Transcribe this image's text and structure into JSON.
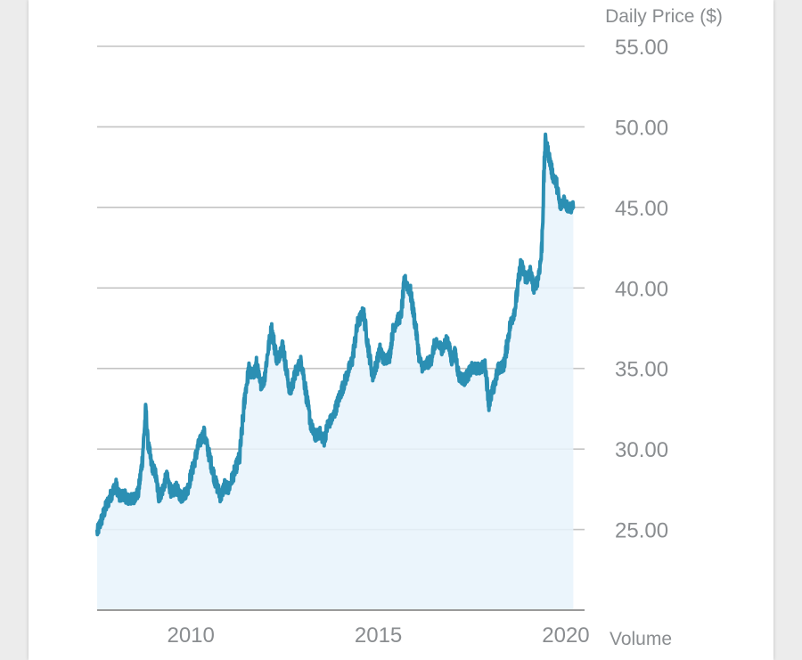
{
  "chart_data": {
    "type": "area",
    "title": "",
    "ylabel": "Daily Price ($)",
    "xlabel_right": "Volume",
    "ylim": [
      20,
      55
    ],
    "xlim": [
      2007.5,
      2020.5
    ],
    "y_ticks": [
      55,
      50,
      45,
      40,
      35,
      30,
      25
    ],
    "y_tick_labels": [
      "55.00",
      "50.00",
      "45.00",
      "40.00",
      "35.00",
      "30.00",
      "25.00"
    ],
    "x_ticks": [
      2010,
      2015,
      2020
    ],
    "x_tick_labels": [
      "2010",
      "2015",
      "2020"
    ],
    "grid": true,
    "colors": {
      "line": "#2b8fb3",
      "fill": "#e8f3fb",
      "grid": "#c4c4c4",
      "axis": "#9a9a9a"
    },
    "series": [
      {
        "name": "Daily Price",
        "x": [
          2007.5,
          2007.6,
          2007.75,
          2007.9,
          2008.0,
          2008.1,
          2008.2,
          2008.35,
          2008.5,
          2008.6,
          2008.7,
          2008.8,
          2008.85,
          2008.95,
          2009.05,
          2009.15,
          2009.25,
          2009.35,
          2009.5,
          2009.6,
          2009.75,
          2009.9,
          2010.05,
          2010.2,
          2010.35,
          2010.5,
          2010.65,
          2010.8,
          2010.9,
          2011.0,
          2011.15,
          2011.3,
          2011.45,
          2011.55,
          2011.65,
          2011.75,
          2011.85,
          2011.95,
          2012.05,
          2012.15,
          2012.3,
          2012.45,
          2012.55,
          2012.65,
          2012.8,
          2012.95,
          2013.1,
          2013.2,
          2013.3,
          2013.45,
          2013.55,
          2013.65,
          2013.8,
          2013.9,
          2014.0,
          2014.15,
          2014.3,
          2014.45,
          2014.6,
          2014.75,
          2014.85,
          2014.95,
          2015.05,
          2015.15,
          2015.3,
          2015.4,
          2015.5,
          2015.6,
          2015.7,
          2015.85,
          2016.0,
          2016.1,
          2016.2,
          2016.3,
          2016.4,
          2016.5,
          2016.6,
          2016.7,
          2016.85,
          2016.95,
          2017.05,
          2017.15,
          2017.3,
          2017.5,
          2017.7,
          2017.85,
          2017.95,
          2018.1,
          2018.2,
          2018.35,
          2018.5,
          2018.65,
          2018.8,
          2018.95,
          2019.05,
          2019.15,
          2019.25,
          2019.35,
          2019.45,
          2019.55,
          2019.65,
          2019.75,
          2019.85,
          2019.95,
          2020.0,
          2020.05,
          2020.1,
          2020.15,
          2020.2
        ],
        "values": [
          24.8,
          25.5,
          26.5,
          27.3,
          27.8,
          27.0,
          27.2,
          26.8,
          27.0,
          27.3,
          29.2,
          32.5,
          30.5,
          29.0,
          28.5,
          27.0,
          27.5,
          28.3,
          27.2,
          27.6,
          27.0,
          27.4,
          28.8,
          30.2,
          31.0,
          29.5,
          28.0,
          27.0,
          27.8,
          27.5,
          28.5,
          29.5,
          33.5,
          35.0,
          34.5,
          35.3,
          34.0,
          34.2,
          36.0,
          37.5,
          35.5,
          36.5,
          34.8,
          33.5,
          34.8,
          35.5,
          33.0,
          31.5,
          30.8,
          31.0,
          30.5,
          31.5,
          32.0,
          32.8,
          33.5,
          34.5,
          35.5,
          37.8,
          38.5,
          36.0,
          34.5,
          35.3,
          36.2,
          35.5,
          35.8,
          37.5,
          38.0,
          38.2,
          40.5,
          39.8,
          37.5,
          35.5,
          35.0,
          35.3,
          35.5,
          36.5,
          36.5,
          36.2,
          36.8,
          35.5,
          36.0,
          34.5,
          34.3,
          35.0,
          35.0,
          35.2,
          32.8,
          34.0,
          35.0,
          35.2,
          37.5,
          38.8,
          41.5,
          40.5,
          41.0,
          40.0,
          40.5,
          42.0,
          49.2,
          48.2,
          47.0,
          46.5,
          45.0,
          45.5,
          45.2,
          45.0,
          45.0,
          45.0,
          45.0
        ]
      }
    ]
  }
}
